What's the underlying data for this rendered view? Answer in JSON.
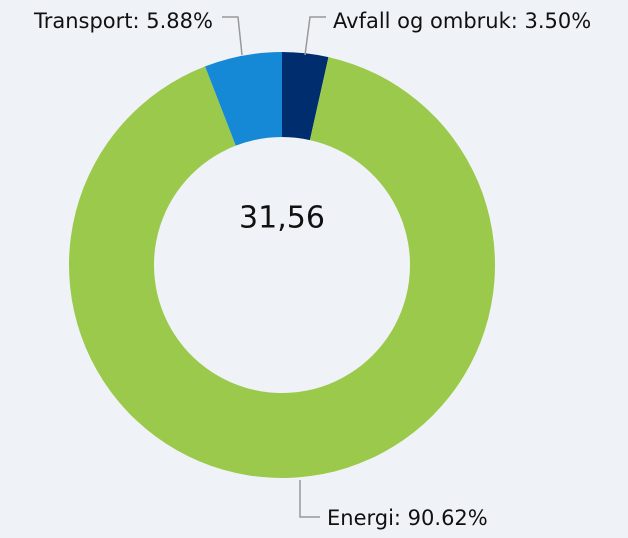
{
  "chart_data": {
    "type": "donut",
    "values": [
      3.5,
      90.62,
      5.88
    ],
    "value_labels": [
      "Avfall og ombruk: 3.50%",
      "Energi: 90.62%",
      "Transport: 5.88%"
    ],
    "colors": [
      "#002d6e",
      "#9bc94b",
      "#1589d6"
    ],
    "center_label": "31,56"
  }
}
